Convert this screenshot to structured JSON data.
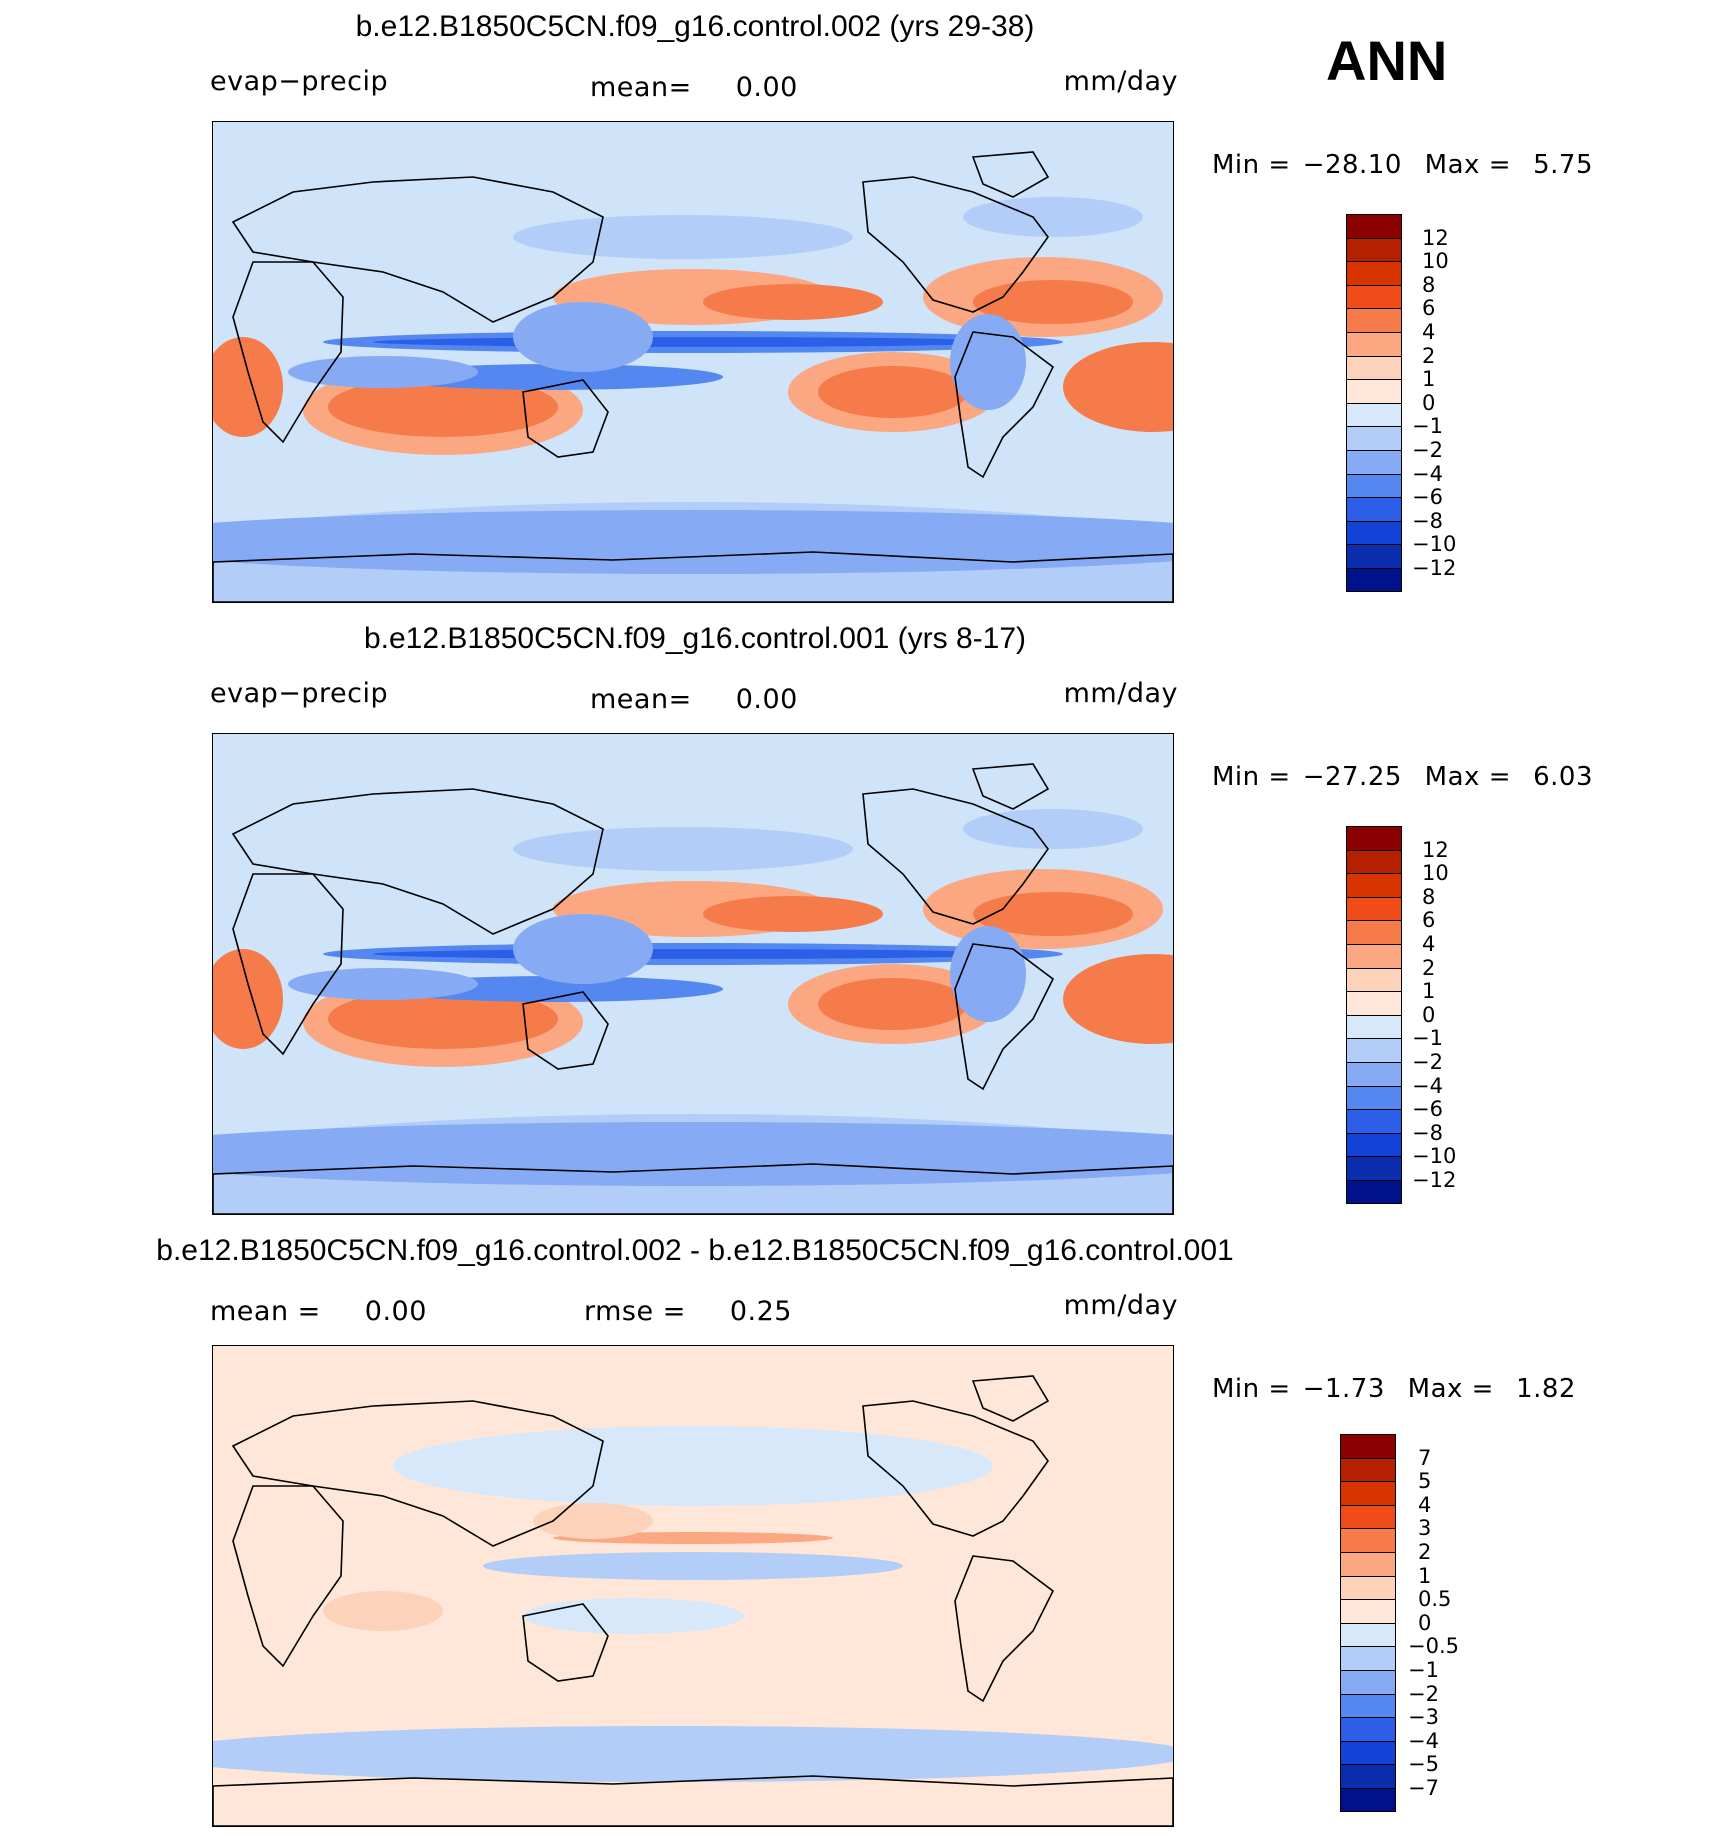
{
  "season": "ANN",
  "colors": {
    "pos": [
      "#8b0000",
      "#b42000",
      "#d83400",
      "#f04c1a",
      "#f57b4b",
      "#fba782",
      "#fdd2bb",
      "#fee7d8"
    ],
    "neg": [
      "#d6e8fa",
      "#b2cdf7",
      "#86abf4",
      "#5587f0",
      "#2b5fe8",
      "#1242d6",
      "#0a2eae",
      "#00128b"
    ],
    "coast": "#000000"
  },
  "panels": [
    {
      "title": "b.e12.B1850C5CN.f09_g16.control.002 (yrs 29-38)",
      "variable": "evap−precip",
      "mean_label": "mean=",
      "mean_value": "0.00",
      "units": "mm/day",
      "min_label": "Min  =",
      "min_value": "−28.10",
      "max_label": "Max  =",
      "max_value": "5.75",
      "levels": [
        "12",
        "10",
        "8",
        "6",
        "4",
        "2",
        "1",
        "0",
        "−1",
        "−2",
        "−4",
        "−6",
        "−8",
        "−10",
        "−12"
      ]
    },
    {
      "title": "b.e12.B1850C5CN.f09_g16.control.001 (yrs 8-17)",
      "variable": "evap−precip",
      "mean_label": "mean=",
      "mean_value": "0.00",
      "units": "mm/day",
      "min_label": "Min  =",
      "min_value": "−27.25",
      "max_label": "Max  =",
      "max_value": "6.03",
      "levels": [
        "12",
        "10",
        "8",
        "6",
        "4",
        "2",
        "1",
        "0",
        "−1",
        "−2",
        "−4",
        "−6",
        "−8",
        "−10",
        "−12"
      ]
    },
    {
      "title": "b.e12.B1850C5CN.f09_g16.control.002 - b.e12.B1850C5CN.f09_g16.control.001",
      "mean_label": "mean  =",
      "mean_value": "0.00",
      "rmse_label": "rmse  =",
      "rmse_value": "0.25",
      "units": "mm/day",
      "min_label": "Min  =",
      "min_value": "−1.73",
      "max_label": "Max  =",
      "max_value": "1.82",
      "levels": [
        "7",
        "5",
        "4",
        "3",
        "2",
        "1",
        "0.5",
        "0",
        "−0.5",
        "−1",
        "−2",
        "−3",
        "−4",
        "−5",
        "−7"
      ]
    }
  ]
}
